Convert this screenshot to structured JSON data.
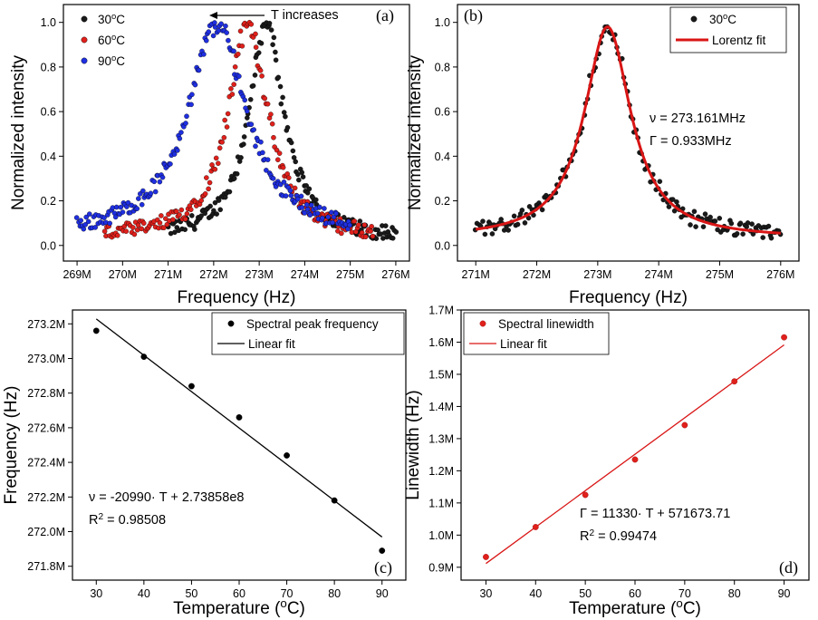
{
  "panels": {
    "a": {
      "label": "(a)",
      "xlabel": "Frequency (Hz)",
      "ylabel": "Normalized intensity",
      "xticks": [
        "269M",
        "270M",
        "271M",
        "272M",
        "273M",
        "274M",
        "275M",
        "276M"
      ],
      "yticks": [
        "0.0",
        "0.2",
        "0.4",
        "0.6",
        "0.8",
        "1.0"
      ],
      "arrow_text": "T increases",
      "legend": [
        {
          "base": "30",
          "sup": "o",
          "unit": "C"
        },
        {
          "base": "60",
          "sup": "o",
          "unit": "C"
        },
        {
          "base": "90",
          "sup": "o",
          "unit": "C"
        }
      ]
    },
    "b": {
      "label": "(b)",
      "xlabel": "Frequency (Hz)",
      "ylabel": "Normalized intensity",
      "xticks": [
        "271M",
        "272M",
        "273M",
        "274M",
        "275M",
        "276M"
      ],
      "yticks": [
        "0.0",
        "0.2",
        "0.4",
        "0.6",
        "0.8",
        "1.0"
      ],
      "legend_points": {
        "base": "30",
        "sup": "o",
        "unit": "C"
      },
      "legend_fit": "Lorentz fit",
      "annotation_nu": "ν = 273.161MHz",
      "annotation_gamma": "Γ = 0.933MHz"
    },
    "c": {
      "label": "(c)",
      "xlabel_base": "Temperature (",
      "xlabel_sup": "o",
      "xlabel_end": "C)",
      "ylabel": "Frequency (Hz)",
      "xticks": [
        "30",
        "40",
        "50",
        "60",
        "70",
        "80",
        "90"
      ],
      "yticks": [
        "271.8M",
        "272.0M",
        "272.2M",
        "272.4M",
        "272.6M",
        "272.8M",
        "273.0M",
        "273.2M"
      ],
      "legend_points": "Spectral peak frequency",
      "legend_fit": "Linear fit",
      "equation": "ν = -20990· T + 2.73858e8",
      "r2_base": "R",
      "r2_sup": "2",
      "r2_value": " = 0.98508"
    },
    "d": {
      "label": "(d)",
      "xlabel_base": "Temperature (",
      "xlabel_sup": "o",
      "xlabel_end": "C)",
      "ylabel": "Linewidth (Hz)",
      "xticks": [
        "30",
        "40",
        "50",
        "60",
        "70",
        "80",
        "90"
      ],
      "yticks": [
        "0.9M",
        "1.0M",
        "1.1M",
        "1.2M",
        "1.3M",
        "1.4M",
        "1.5M",
        "1.6M",
        "1.7M"
      ],
      "legend_points": "Spectral linewidth",
      "legend_fit": "Linear fit",
      "equation": "Γ = 11330· T + 571673.71",
      "r2_base": "R",
      "r2_sup": "2",
      "r2_value": " = 0.99474"
    }
  },
  "colors": {
    "black": "#1a1a1a",
    "red": "#e0201b",
    "blue": "#1f2fe0",
    "fit_red": "#d91515"
  },
  "chart_data": [
    {
      "type": "scatter",
      "panel": "a",
      "xlim": [
        268.7,
        276.3
      ],
      "ylim": [
        -0.07,
        1.08
      ],
      "xunit": "MHz",
      "xlabel": "Frequency (Hz)",
      "ylabel": "Normalized intensity",
      "model": "lorentzian_with_scatter",
      "series": [
        {
          "name": "30oC",
          "color": "#1a1a1a",
          "x_range": [
            271.0,
            276.0
          ],
          "center": 273.16,
          "fwhm": 0.93,
          "baseline": 0.03,
          "peak": 1.0,
          "n_points": 180
        },
        {
          "name": "60oC",
          "color": "#e0201b",
          "x_range": [
            269.6,
            275.5
          ],
          "center": 272.75,
          "fwhm": 1.05,
          "baseline": 0.03,
          "peak": 1.0,
          "n_points": 190
        },
        {
          "name": "90oC",
          "color": "#1f2fe0",
          "x_range": [
            269.0,
            275.0
          ],
          "center": 272.08,
          "fwhm": 1.55,
          "baseline": 0.04,
          "peak": 1.0,
          "n_points": 200
        }
      ]
    },
    {
      "type": "scatter",
      "panel": "b",
      "xlim": [
        270.7,
        276.3
      ],
      "ylim": [
        -0.07,
        1.08
      ],
      "xunit": "MHz",
      "xlabel": "Frequency (Hz)",
      "ylabel": "Normalized intensity",
      "series": [
        {
          "name": "30oC",
          "color": "#1a1a1a",
          "kind": "points",
          "model": "lorentzian_with_scatter",
          "x_range": [
            271.0,
            276.0
          ],
          "center": 273.161,
          "fwhm": 0.933,
          "baseline": 0.03,
          "peak": 0.98,
          "n_points": 170
        },
        {
          "name": "Lorentz fit",
          "color": "#d91515",
          "kind": "line",
          "model": "lorentzian",
          "x_range": [
            271.0,
            276.0
          ],
          "center": 273.161,
          "fwhm": 0.933,
          "baseline": 0.03,
          "peak": 0.98
        }
      ]
    },
    {
      "type": "scatter",
      "panel": "c",
      "xlim": [
        25,
        95
      ],
      "ylim": [
        271.72,
        273.28
      ],
      "yunit": "MHz",
      "xlabel": "Temperature (oC)",
      "ylabel": "Frequency (Hz)",
      "x": [
        30,
        40,
        50,
        60,
        70,
        80,
        90
      ],
      "series": [
        {
          "name": "Spectral peak frequency",
          "kind": "points",
          "color": "#000000",
          "values": [
            273.16,
            273.01,
            272.84,
            272.66,
            272.44,
            272.18,
            271.89
          ]
        },
        {
          "name": "Linear fit",
          "kind": "line",
          "color": "#000000",
          "slope": -0.02099,
          "intercept": 273.858
        }
      ]
    },
    {
      "type": "scatter",
      "panel": "d",
      "xlim": [
        25,
        95
      ],
      "ylim": [
        0.86,
        1.7
      ],
      "yunit": "MHz",
      "xlabel": "Temperature (oC)",
      "ylabel": "Linewidth (Hz)",
      "x": [
        30,
        40,
        50,
        60,
        70,
        80,
        90
      ],
      "series": [
        {
          "name": "Spectral linewidth",
          "kind": "points",
          "color": "#e0201b",
          "values": [
            0.932,
            1.025,
            1.125,
            1.235,
            1.342,
            1.478,
            1.615
          ]
        },
        {
          "name": "Linear fit",
          "kind": "line",
          "color": "#d91515",
          "slope": 0.01133,
          "intercept": 0.5716737
        }
      ]
    }
  ]
}
